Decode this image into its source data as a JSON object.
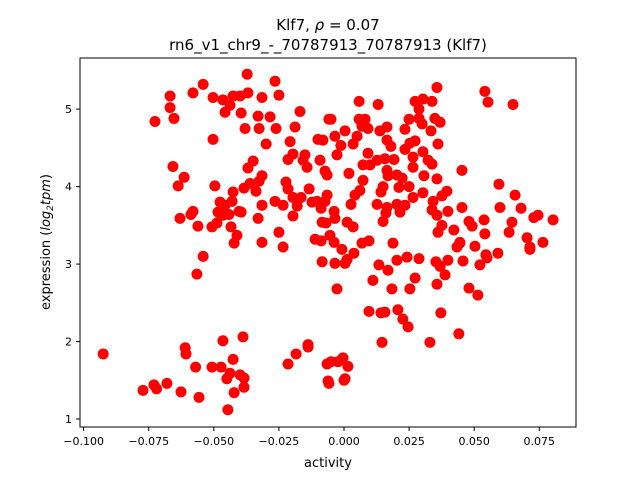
{
  "chart_data": {
    "type": "scatter",
    "title_line1_prefix": "Klf7, ",
    "title_rho_symbol": "ρ",
    "title_rho_value": " = 0.07",
    "title_line2": "rn6_v1_chr9_-_70787913_70787913 (Klf7)",
    "xlabel": "activity",
    "ylabel_prefix": "expression (",
    "ylabel_log": "log",
    "ylabel_sub": "2",
    "ylabel_tpm": "tpm",
    "ylabel_suffix": ")",
    "xlim": [
      -0.1014,
      0.0891
    ],
    "ylim": [
      0.897,
      5.66
    ],
    "xticks": [
      -0.1,
      -0.075,
      -0.05,
      -0.025,
      0,
      0.025,
      0.05,
      0.075
    ],
    "xtick_labels": [
      "−0.100",
      "−0.075",
      "−0.050",
      "−0.025",
      "0.000",
      "0.025",
      "0.050",
      "0.075"
    ],
    "yticks": [
      1,
      2,
      3,
      4,
      5
    ],
    "ytick_labels": [
      "1",
      "2",
      "3",
      "4",
      "5"
    ],
    "grid": false,
    "marker_color": "#ff0000",
    "points": [
      [
        -0.0925,
        1.84
      ],
      [
        -0.0772,
        1.37
      ],
      [
        -0.073,
        1.44
      ],
      [
        -0.072,
        1.39
      ],
      [
        -0.068,
        1.46
      ],
      [
        -0.0626,
        1.35
      ],
      [
        -0.061,
        1.92
      ],
      [
        -0.0607,
        1.84
      ],
      [
        -0.057,
        1.67
      ],
      [
        -0.0557,
        1.28
      ],
      [
        -0.0507,
        1.67
      ],
      [
        -0.0472,
        1.67
      ],
      [
        -0.0465,
        2.01
      ],
      [
        -0.045,
        1.52
      ],
      [
        -0.0438,
        1.59
      ],
      [
        -0.0446,
        1.12
      ],
      [
        -0.0426,
        1.77
      ],
      [
        -0.0422,
        1.34
      ],
      [
        -0.0399,
        1.57
      ],
      [
        -0.0388,
        2.06
      ],
      [
        -0.0384,
        1.41
      ],
      [
        -0.0384,
        1.53
      ],
      [
        -0.0215,
        1.71
      ],
      [
        -0.0184,
        1.84
      ],
      [
        -0.0138,
        1.93
      ],
      [
        -0.0065,
        1.71
      ],
      [
        -0.0061,
        1.49
      ],
      [
        -0.005,
        1.74
      ],
      [
        -0.0023,
        1.74
      ],
      [
        -0.0004,
        1.79
      ],
      [
        0.0004,
        1.52
      ],
      [
        -0.0027,
        2.68
      ],
      [
        -0.0726,
        4.84
      ],
      [
        -0.0668,
        5.17
      ],
      [
        -0.0668,
        5.02
      ],
      [
        -0.0653,
        4.88
      ],
      [
        -0.058,
        5.21
      ],
      [
        -0.0541,
        5.32
      ],
      [
        -0.0503,
        5.15
      ],
      [
        -0.0503,
        4.61
      ],
      [
        -0.0465,
        5.12
      ],
      [
        -0.0457,
        4.96
      ],
      [
        -0.0438,
        5.05
      ],
      [
        -0.0426,
        5.17
      ],
      [
        -0.0399,
        5.17
      ],
      [
        -0.0372,
        5.45
      ],
      [
        -0.0369,
        5.21
      ],
      [
        -0.0395,
        4.95
      ],
      [
        -0.038,
        4.75
      ],
      [
        -0.033,
        4.91
      ],
      [
        -0.0315,
        5.15
      ],
      [
        -0.0326,
        4.75
      ],
      [
        -0.0284,
        4.9
      ],
      [
        -0.0265,
        5.36
      ],
      [
        -0.025,
        5.18
      ],
      [
        -0.0261,
        4.75
      ],
      [
        -0.0299,
        4.55
      ],
      [
        -0.0188,
        4.77
      ],
      [
        -0.0169,
        4.97
      ],
      [
        -0.0207,
        4.58
      ],
      [
        -0.0196,
        4.42
      ],
      [
        -0.0215,
        4.35
      ],
      [
        -0.015,
        4.41
      ],
      [
        -0.0157,
        4.34
      ],
      [
        -0.0142,
        4.25
      ],
      [
        -0.01,
        4.61
      ],
      [
        -0.0081,
        4.6
      ],
      [
        -0.0092,
        4.34
      ],
      [
        -0.0073,
        4.2
      ],
      [
        -0.0058,
        4.87
      ],
      [
        -0.0657,
        4.26
      ],
      [
        -0.0614,
        4.12
      ],
      [
        -0.0637,
        4.01
      ],
      [
        -0.0496,
        4.01
      ],
      [
        -0.0349,
        4.33
      ],
      [
        -0.0369,
        4.24
      ],
      [
        -0.0315,
        4.14
      ],
      [
        -0.0326,
        4.07
      ],
      [
        -0.0361,
        4.04
      ],
      [
        -0.0384,
        3.98
      ],
      [
        -0.0338,
        3.94
      ],
      [
        -0.0426,
        3.93
      ],
      [
        -0.043,
        3.81
      ],
      [
        -0.0476,
        3.8
      ],
      [
        -0.0457,
        3.76
      ],
      [
        -0.0403,
        3.68
      ],
      [
        -0.0395,
        3.67
      ],
      [
        -0.0484,
        3.67
      ],
      [
        -0.0442,
        3.64
      ],
      [
        -0.0465,
        3.63
      ],
      [
        -0.058,
        3.68
      ],
      [
        -0.0588,
        3.64
      ],
      [
        -0.063,
        3.59
      ],
      [
        -0.0561,
        3.49
      ],
      [
        -0.0507,
        3.48
      ],
      [
        -0.0434,
        3.48
      ],
      [
        -0.0488,
        3.53
      ],
      [
        -0.0411,
        3.37
      ],
      [
        -0.0422,
        3.27
      ],
      [
        -0.0315,
        3.28
      ],
      [
        -0.033,
        3.59
      ],
      [
        -0.0315,
        3.76
      ],
      [
        -0.0265,
        3.81
      ],
      [
        -0.0234,
        3.76
      ],
      [
        -0.025,
        3.41
      ],
      [
        -0.0234,
        3.22
      ],
      [
        -0.0196,
        3.62
      ],
      [
        -0.018,
        3.75
      ],
      [
        -0.0165,
        3.86
      ],
      [
        -0.0196,
        3.86
      ],
      [
        -0.0134,
        3.97
      ],
      [
        -0.0223,
        4.06
      ],
      [
        -0.0215,
        3.97
      ],
      [
        -0.0123,
        3.8
      ],
      [
        -0.0104,
        3.81
      ],
      [
        -0.0088,
        3.72
      ],
      [
        -0.0073,
        3.81
      ],
      [
        -0.0084,
        3.54
      ],
      [
        -0.0069,
        3.53
      ],
      [
        -0.0111,
        3.32
      ],
      [
        -0.0088,
        3.3
      ],
      [
        -0.0565,
        2.87
      ],
      [
        -0.0541,
        3.1
      ],
      [
        -0.0138,
        1.96
      ],
      [
        0.0357,
        5.28
      ],
      [
        0.0541,
        5.23
      ],
      [
        0.0553,
        5.09
      ],
      [
        0.0649,
        5.06
      ],
      [
        0.0058,
        5.1
      ],
      [
        0.0131,
        5.06
      ],
      [
        0.0273,
        5.1
      ],
      [
        0.0303,
        5.13
      ],
      [
        0.0338,
        5.1
      ],
      [
        0.0288,
        5.0
      ],
      [
        -0.005,
        4.87
      ],
      [
        0.0058,
        4.87
      ],
      [
        0.0081,
        4.87
      ],
      [
        0.025,
        4.87
      ],
      [
        0.0288,
        4.88
      ],
      [
        0.0349,
        4.88
      ],
      [
        0.0369,
        4.83
      ],
      [
        0.03,
        4.81
      ],
      [
        0.0069,
        4.78
      ],
      [
        0.0092,
        4.75
      ],
      [
        0.0165,
        4.77
      ],
      [
        0.0138,
        4.72
      ],
      [
        0.0234,
        4.74
      ],
      [
        0.0334,
        4.72
      ],
      [
        0.0004,
        4.72
      ],
      [
        -0.0035,
        4.65
      ],
      [
        0.005,
        4.65
      ],
      [
        0.0035,
        4.55
      ],
      [
        -0.0012,
        4.53
      ],
      [
        0.0165,
        4.6
      ],
      [
        0.018,
        4.52
      ],
      [
        -0.0027,
        4.41
      ],
      [
        0.0273,
        4.59
      ],
      [
        0.0253,
        4.56
      ],
      [
        0.0361,
        4.55
      ],
      [
        0.0234,
        4.48
      ],
      [
        0.0265,
        4.38
      ],
      [
        0.0303,
        4.45
      ],
      [
        0.0323,
        4.34
      ],
      [
        0.0338,
        4.29
      ],
      [
        0.0453,
        4.21
      ],
      [
        0.0092,
        4.43
      ],
      [
        0.01,
        4.28
      ],
      [
        0.0127,
        4.34
      ],
      [
        0.0157,
        4.36
      ],
      [
        0.0192,
        4.35
      ],
      [
        0.0073,
        4.28
      ],
      [
        0.0165,
        4.21
      ],
      [
        0.0019,
        4.17
      ],
      [
        0.0265,
        4.25
      ],
      [
        -0.0065,
        4.15
      ],
      [
        0.0169,
        4.14
      ],
      [
        0.0203,
        4.15
      ],
      [
        0.0223,
        4.11
      ],
      [
        0.0307,
        4.14
      ],
      [
        0.0357,
        4.1
      ],
      [
        0.0073,
        4.08
      ],
      [
        0.015,
        4.0
      ],
      [
        0.0211,
        3.99
      ],
      [
        0.025,
        4.0
      ],
      [
        0.0595,
        4.03
      ],
      [
        0.0061,
        3.95
      ],
      [
        0.0042,
        3.89
      ],
      [
        0.0142,
        3.93
      ],
      [
        0.0265,
        3.86
      ],
      [
        0.0303,
        3.92
      ],
      [
        0.0395,
        3.94
      ],
      [
        0.0376,
        3.88
      ],
      [
        0.0657,
        3.89
      ],
      [
        -0.0065,
        3.89
      ],
      [
        0.0027,
        3.77
      ],
      [
        0.0127,
        3.77
      ],
      [
        0.0165,
        3.73
      ],
      [
        0.0203,
        3.77
      ],
      [
        0.0234,
        3.76
      ],
      [
        0.0342,
        3.81
      ],
      [
        0.0453,
        3.73
      ],
      [
        0.0599,
        3.73
      ],
      [
        0.068,
        3.72
      ],
      [
        0.0161,
        3.66
      ],
      [
        0.0215,
        3.67
      ],
      [
        0.0338,
        3.7
      ],
      [
        0.0357,
        3.63
      ],
      [
        0.0399,
        3.68
      ],
      [
        0.0729,
        3.6
      ],
      [
        0.0745,
        3.63
      ],
      [
        0.0803,
        3.57
      ],
      [
        -0.0038,
        3.68
      ],
      [
        -0.0035,
        3.59
      ],
      [
        0.015,
        3.55
      ],
      [
        0.048,
        3.55
      ],
      [
        0.0538,
        3.57
      ],
      [
        0.0645,
        3.54
      ],
      [
        0.0012,
        3.54
      ],
      [
        0.0035,
        3.48
      ],
      [
        0.0376,
        3.5
      ],
      [
        0.0422,
        3.44
      ],
      [
        0.0361,
        3.41
      ],
      [
        -0.0054,
        3.37
      ],
      [
        0.0492,
        3.49
      ],
      [
        0.0541,
        3.39
      ],
      [
        0.0634,
        3.41
      ],
      [
        0.0703,
        3.34
      ],
      [
        0.0764,
        3.28
      ],
      [
        0.0714,
        3.22
      ],
      [
        0.0069,
        3.27
      ],
      [
        0.0096,
        3.3
      ],
      [
        0.0188,
        3.27
      ],
      [
        0.0445,
        3.28
      ],
      [
        0.0503,
        3.23
      ],
      [
        -0.0038,
        3.28
      ],
      [
        -0.0008,
        3.19
      ],
      [
        0.0038,
        3.14
      ],
      [
        -0.0084,
        3.03
      ],
      [
        -0.0035,
        3.01
      ],
      [
        0.0004,
        3.01
      ],
      [
        0.0012,
        3.06
      ],
      [
        0.0134,
        2.99
      ],
      [
        0.0169,
        2.92
      ],
      [
        0.0203,
        3.05
      ],
      [
        0.0242,
        3.09
      ],
      [
        0.0288,
        3.07
      ],
      [
        0.0111,
        2.79
      ],
      [
        0.0184,
        2.68
      ],
      [
        0.0253,
        2.68
      ],
      [
        0.0273,
        2.82
      ],
      [
        0.0353,
        3.03
      ],
      [
        0.0369,
        2.97
      ],
      [
        0.0399,
        3.05
      ],
      [
        0.0388,
        2.86
      ],
      [
        0.0357,
        2.74
      ],
      [
        0.0457,
        3.04
      ],
      [
        0.0434,
        3.22
      ],
      [
        0.0445,
        3.27
      ],
      [
        0.0545,
        3.12
      ],
      [
        0.0549,
        3.08
      ],
      [
        0.0591,
        3.14
      ],
      [
        0.0522,
        2.99
      ],
      [
        0.048,
        2.69
      ],
      [
        0.0514,
        2.6
      ],
      [
        0.0714,
        3.19
      ],
      [
        0.0096,
        2.39
      ],
      [
        0.0142,
        2.37
      ],
      [
        0.0157,
        2.38
      ],
      [
        0.0207,
        2.41
      ],
      [
        0.0226,
        2.29
      ],
      [
        0.0246,
        2.19
      ],
      [
        0.0372,
        2.37
      ],
      [
        0.0441,
        2.1
      ],
      [
        0.0146,
        1.99
      ],
      [
        0.033,
        1.99
      ],
      [
        0.0015,
        1.68
      ],
      [
        -0.0058,
        1.46
      ],
      [
        0.0,
        1.5
      ]
    ]
  }
}
